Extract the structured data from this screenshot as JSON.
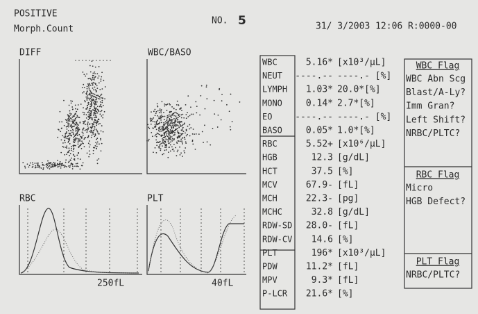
{
  "header": {
    "status": "POSITIVE",
    "mode": "Morph.Count",
    "number_label": "NO.",
    "number": "5",
    "datetime": "31/ 3/2003 12:06 R:0000-00"
  },
  "plots": {
    "diff": "DIFF",
    "wbc_baso": "WBC/BASO",
    "rbc": "RBC",
    "rbc_axis": "250fL",
    "plt": "PLT",
    "plt_axis": "40fL"
  },
  "table": {
    "rows": [
      [
        "WBC",
        "5.16*",
        "[x10³/µL]"
      ],
      [
        "NEUT",
        "----.--",
        "----.- [%]"
      ],
      [
        "LYMPH",
        "1.03*",
        "20.0*[%]"
      ],
      [
        "MONO",
        "0.14*",
        "2.7*[%]"
      ],
      [
        "EO",
        "----.--",
        "----.- [%]"
      ],
      [
        "BASO",
        "0.05*",
        "1.0*[%]"
      ],
      [
        "RBC",
        "5.52+",
        "[x10⁶/µL]"
      ],
      [
        "HGB",
        "12.3",
        "[g/dL]"
      ],
      [
        "HCT",
        "37.5",
        "[%]"
      ],
      [
        "MCV",
        "67.9-",
        "[fL]"
      ],
      [
        "MCH",
        "22.3-",
        "[pg]"
      ],
      [
        "MCHC",
        "32.8",
        "[g/dL]"
      ],
      [
        "RDW-SD",
        "28.0-",
        "[fL]"
      ],
      [
        "RDW-CV",
        "14.6",
        "[%]"
      ],
      [
        "PLT",
        "196*",
        "[x10³/µL]"
      ],
      [
        "PDW",
        "11.2*",
        "[fL]"
      ],
      [
        "MPV",
        "9.3*",
        "[fL]"
      ],
      [
        "P-LCR",
        "21.6*",
        "[%]"
      ]
    ]
  },
  "flags": {
    "wbc": {
      "title": "WBC Flag",
      "items": [
        "WBC Abn Scg",
        "Blast/A-Ly?",
        "Imm Gran?",
        "Left Shift?",
        "NRBC/PLTC?"
      ]
    },
    "rbc": {
      "title": "RBC Flag",
      "items": [
        "Micro",
        "HGB Defect?"
      ]
    },
    "plt": {
      "title": "PLT Flag",
      "items": [
        "NRBC/PLTC?"
      ]
    }
  }
}
